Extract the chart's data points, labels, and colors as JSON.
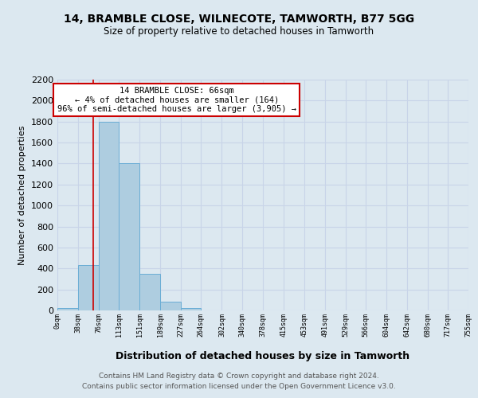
{
  "title": "14, BRAMBLE CLOSE, WILNECOTE, TAMWORTH, B77 5GG",
  "subtitle": "Size of property relative to detached houses in Tamworth",
  "xlabel": "Distribution of detached houses by size in Tamworth",
  "ylabel": "Number of detached properties",
  "bar_edges": [
    0,
    38,
    76,
    113,
    151,
    189,
    227,
    264,
    302,
    340,
    378,
    415,
    453,
    491,
    529,
    566,
    604,
    642,
    680,
    717,
    755
  ],
  "bar_heights": [
    20,
    430,
    1800,
    1400,
    350,
    80,
    25,
    0,
    0,
    0,
    0,
    0,
    0,
    0,
    0,
    0,
    0,
    0,
    0,
    0
  ],
  "bar_color": "#aecde0",
  "bar_edge_color": "#6aadd5",
  "property_line_x": 66,
  "property_line_color": "#cc0000",
  "ylim": [
    0,
    2200
  ],
  "yticks": [
    0,
    200,
    400,
    600,
    800,
    1000,
    1200,
    1400,
    1600,
    1800,
    2000,
    2200
  ],
  "xtick_labels": [
    "0sqm",
    "38sqm",
    "76sqm",
    "113sqm",
    "151sqm",
    "189sqm",
    "227sqm",
    "264sqm",
    "302sqm",
    "340sqm",
    "378sqm",
    "415sqm",
    "453sqm",
    "491sqm",
    "529sqm",
    "566sqm",
    "604sqm",
    "642sqm",
    "680sqm",
    "717sqm",
    "755sqm"
  ],
  "annotation_title": "14 BRAMBLE CLOSE: 66sqm",
  "annotation_line1": "← 4% of detached houses are smaller (164)",
  "annotation_line2": "96% of semi-detached houses are larger (3,905) →",
  "annotation_box_color": "#ffffff",
  "annotation_box_edge_color": "#cc0000",
  "grid_color": "#c8d4e8",
  "background_color": "#dce8f0",
  "footer_line1": "Contains HM Land Registry data © Crown copyright and database right 2024.",
  "footer_line2": "Contains public sector information licensed under the Open Government Licence v3.0."
}
